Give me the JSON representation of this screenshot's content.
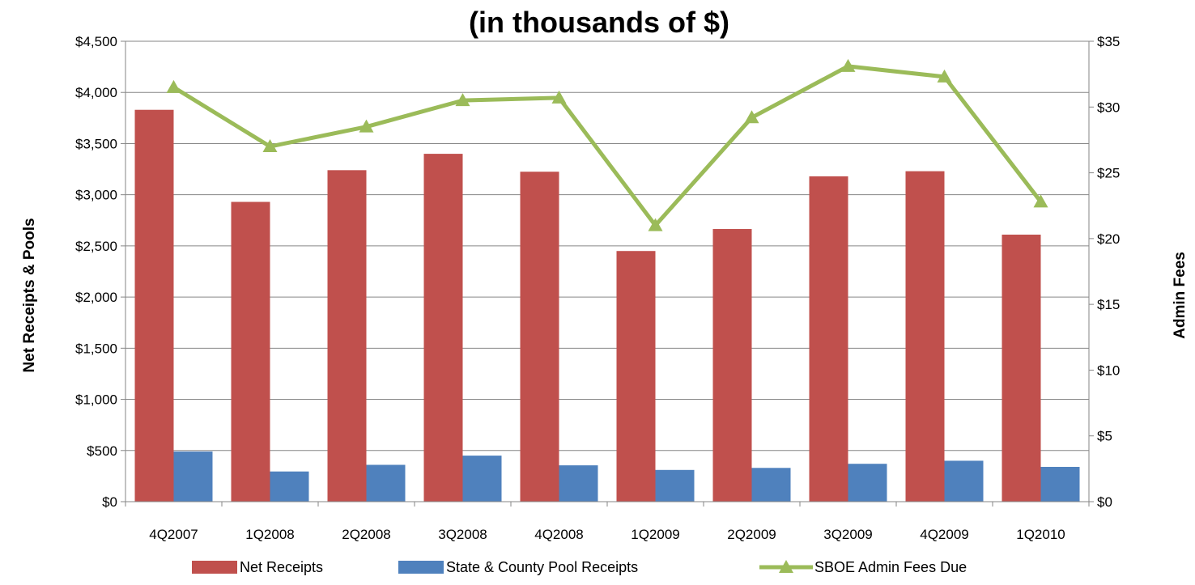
{
  "chart_data": {
    "type": "bar",
    "title": "(in thousands of $)",
    "ylabel": "Net Receipts & Pools",
    "y2label": "Admin Fees",
    "categories": [
      "4Q2007",
      "1Q2008",
      "2Q2008",
      "3Q2008",
      "4Q2008",
      "1Q2009",
      "2Q2009",
      "3Q2009",
      "4Q2009",
      "1Q2010"
    ],
    "ylim": [
      0,
      4500
    ],
    "y2lim": [
      0,
      35
    ],
    "yticks": [
      "$0",
      "$500",
      "$1,000",
      "$1,500",
      "$2,000",
      "$2,500",
      "$3,000",
      "$3,500",
      "$4,000",
      "$4,500"
    ],
    "y2ticks": [
      "$0",
      "$5",
      "$10",
      "$15",
      "$20",
      "$25",
      "$30",
      "$35"
    ],
    "grid": true,
    "legend_position": "bottom",
    "series": [
      {
        "name": "Net Receipts",
        "type": "bar",
        "axis": "left",
        "color": "#C0504D",
        "values": [
          3830,
          2930,
          3240,
          3400,
          3225,
          2450,
          2665,
          3180,
          3230,
          2610
        ]
      },
      {
        "name": "State & County Pool Receipts",
        "type": "bar",
        "axis": "left",
        "color": "#4F81BD",
        "values": [
          490,
          295,
          360,
          450,
          355,
          310,
          330,
          370,
          400,
          340
        ]
      },
      {
        "name": "SBOE Admin Fees Due",
        "type": "line",
        "axis": "right",
        "color": "#9BBB59",
        "marker": "triangle",
        "values": [
          31.5,
          27.0,
          28.5,
          30.5,
          30.7,
          21.0,
          29.2,
          33.1,
          32.3,
          22.8
        ]
      }
    ]
  }
}
